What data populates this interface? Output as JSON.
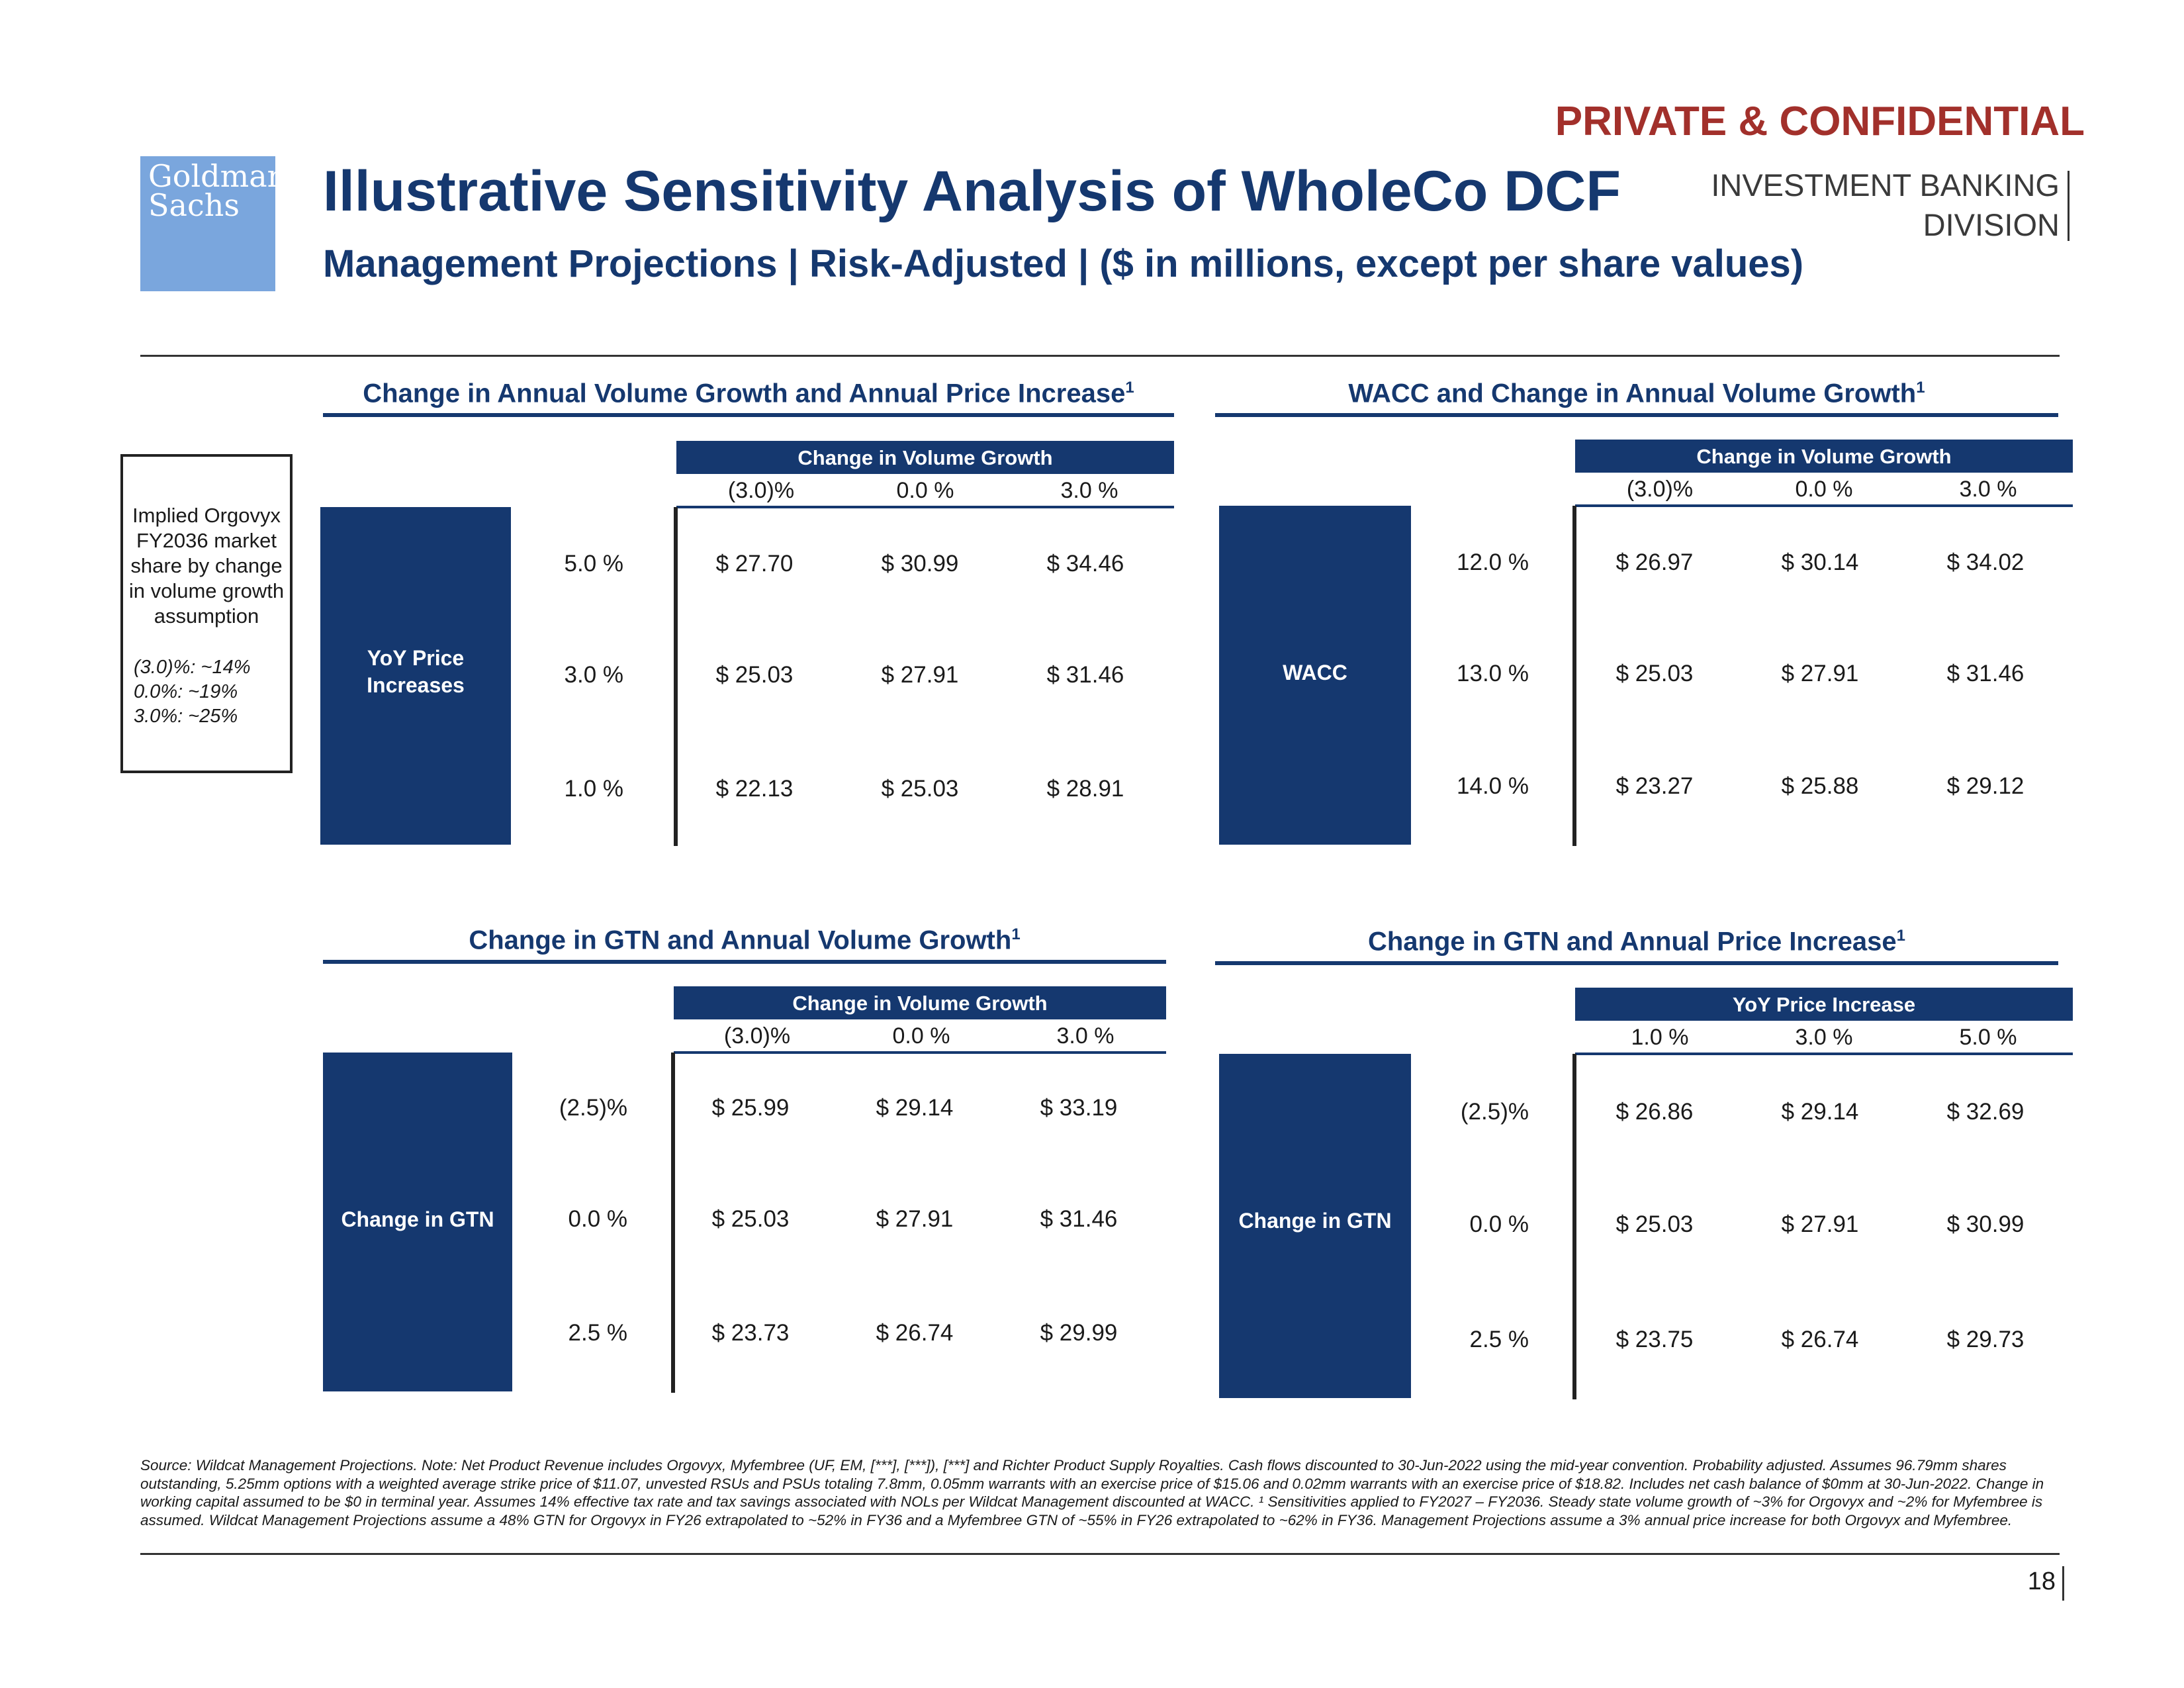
{
  "header": {
    "confidential": "PRIVATE & CONFIDENTIAL",
    "logo_line1": "Goldman",
    "logo_line2": "Sachs",
    "title": "Illustrative Sensitivity Analysis of WholeCo DCF",
    "division_line1": "INVESTMENT BANKING",
    "division_line2": "DIVISION",
    "subtitle": "Management Projections | Risk-Adjusted | ($ in millions, except per share values)"
  },
  "note": {
    "text": "Implied Orgovyx FY2036 market share by change in volume growth assumption",
    "lines": [
      "(3.0)%: ~14%",
      "0.0%: ~19%",
      "3.0%: ~25%"
    ]
  },
  "tables": [
    {
      "title": "Change in Annual Volume Growth and Annual Price Increase",
      "sup": "1",
      "col_header": "Change in Volume Growth",
      "cols": [
        "(3.0)%",
        "0.0 %",
        "3.0 %"
      ],
      "row_header": "YoY Price Increases",
      "rows": [
        {
          "label": "5.0 %",
          "values": [
            "$ 27.70",
            "$ 30.99",
            "$ 34.46"
          ]
        },
        {
          "label": "3.0 %",
          "values": [
            "$ 25.03",
            "$ 27.91",
            "$ 31.46"
          ]
        },
        {
          "label": "1.0 %",
          "values": [
            "$ 22.13",
            "$ 25.03",
            "$ 28.91"
          ]
        }
      ]
    },
    {
      "title": "WACC and Change in Annual Volume Growth",
      "sup": "1",
      "col_header": "Change in Volume Growth",
      "cols": [
        "(3.0)%",
        "0.0 %",
        "3.0 %"
      ],
      "row_header": "WACC",
      "rows": [
        {
          "label": "12.0 %",
          "values": [
            "$ 26.97",
            "$ 30.14",
            "$ 34.02"
          ]
        },
        {
          "label": "13.0 %",
          "values": [
            "$ 25.03",
            "$ 27.91",
            "$ 31.46"
          ]
        },
        {
          "label": "14.0 %",
          "values": [
            "$ 23.27",
            "$ 25.88",
            "$ 29.12"
          ]
        }
      ]
    },
    {
      "title": "Change in GTN and Annual Volume Growth",
      "sup": "1",
      "col_header": "Change in Volume Growth",
      "cols": [
        "(3.0)%",
        "0.0 %",
        "3.0 %"
      ],
      "row_header": "Change in GTN",
      "rows": [
        {
          "label": "(2.5)%",
          "values": [
            "$ 25.99",
            "$ 29.14",
            "$ 33.19"
          ]
        },
        {
          "label": "0.0 %",
          "values": [
            "$ 25.03",
            "$ 27.91",
            "$ 31.46"
          ]
        },
        {
          "label": "2.5 %",
          "values": [
            "$ 23.73",
            "$ 26.74",
            "$ 29.99"
          ]
        }
      ]
    },
    {
      "title": "Change in GTN and Annual Price Increase",
      "sup": "1",
      "col_header": "YoY Price Increase",
      "cols": [
        "1.0 %",
        "3.0 %",
        "5.0 %"
      ],
      "row_header": "Change in GTN",
      "rows": [
        {
          "label": "(2.5)%",
          "values": [
            "$ 26.86",
            "$ 29.14",
            "$ 32.69"
          ]
        },
        {
          "label": "0.0 %",
          "values": [
            "$ 25.03",
            "$ 27.91",
            "$ 30.99"
          ]
        },
        {
          "label": "2.5 %",
          "values": [
            "$ 23.75",
            "$ 26.74",
            "$ 29.73"
          ]
        }
      ]
    }
  ],
  "footer": {
    "note": "Source: Wildcat Management Projections. Note: Net Product Revenue includes Orgovyx, Myfembree (UF, EM, [***], [***]), [***] and Richter Product Supply Royalties. Cash flows discounted to 30-Jun-2022 using the mid-year convention. Probability adjusted. Assumes 96.79mm shares outstanding, 5.25mm options with a weighted average strike price of $11.07, unvested RSUs and PSUs totaling 7.8mm, 0.05mm warrants with an exercise price of $15.06 and 0.02mm warrants with an exercise price of $18.82. Includes net cash balance of $0mm at 30-Jun-2022. Change in working capital assumed to be $0 in terminal year. Assumes 14% effective tax rate and tax savings associated with NOLs per Wildcat Management discounted at WACC. ¹ Sensitivities applied to FY2027 – FY2036. Steady state volume growth of ~3% for Orgovyx and ~2% for Myfembree is assumed. Wildcat Management Projections assume a 48% GTN for Orgovyx in FY26 extrapolated to ~52% in FY36 and a Myfembree GTN of ~55% in FY26 extrapolated to ~62% in FY36. Management Projections assume a 3% annual price increase for both Orgovyx and Myfembree.",
    "page_number": "18"
  }
}
